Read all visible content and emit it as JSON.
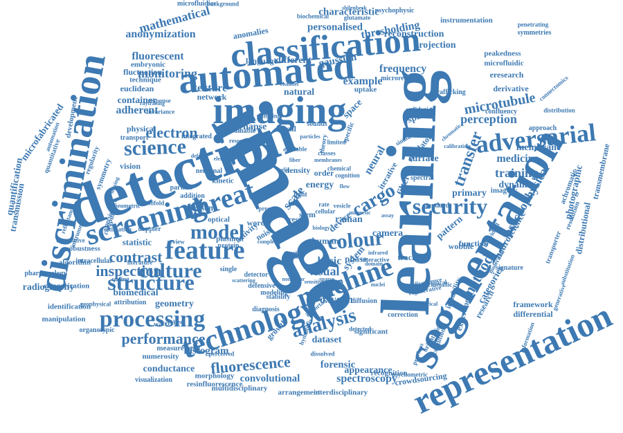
{
  "colors": {
    "primary": "#3d79b2",
    "background": "#ffffff"
  },
  "words": [
    "imaging",
    "learning",
    "detection",
    "image",
    "automated",
    "classification",
    "discrimination",
    "segmentation",
    "representation",
    "screening",
    "threat",
    "technology",
    "machine",
    "adversarial",
    "processing",
    "structure",
    "feature",
    "science",
    "model",
    "security",
    "analysis",
    "culture",
    "colour",
    "fluorescence",
    "performance",
    "microtubule",
    "inspection",
    "contrast",
    "electron",
    "transfer",
    "cargo",
    "medicine",
    "training",
    "perception",
    "psychophysical",
    "method",
    "spectroscopy",
    "characteristic",
    "personalised",
    "thresholding",
    "reconstruction",
    "anonymization",
    "mathematical",
    "monitoring",
    "fluorescent",
    "projection",
    "microfabricated",
    "quantification",
    "transmission",
    "convolutional",
    "histogram",
    "conductance",
    "biomedical",
    "geometry",
    "radiography",
    "membrane",
    "neuroscience",
    "photographic",
    "distributional",
    "transmembrane",
    "categories",
    "research",
    "experiment",
    "framework",
    "differential",
    "microfluidic",
    "peakedness",
    "eresearch",
    "derivative",
    "connectomics",
    "achromatic",
    "crowdsourcing",
    "interdisciplinary",
    "multidisciplinary",
    "arrangement",
    "morphology",
    "visualization",
    "numerosity",
    "measurement",
    "resinfluorescence",
    "manipulation",
    "identification",
    "categorization",
    "pharmacology",
    "algorithm",
    "statistic",
    "robustness",
    "adherent",
    "container",
    "network",
    "texture",
    "natural",
    "example",
    "frequency",
    "gaussian",
    "different",
    "language",
    "anomalies",
    "technique",
    "fluctuation",
    "euclidean",
    "embryonic",
    "physical",
    "transport",
    "regularity",
    "symmetry",
    "vision",
    "development",
    "quantitative",
    "microfluidics",
    "background",
    "instrumentation",
    "psychophysic",
    "glutamate",
    "biochemical",
    "shilenbeck",
    "symmetries",
    "penetrating",
    "spatial",
    "space",
    "neural",
    "surface",
    "system",
    "primary",
    "pattern",
    "function",
    "dynamic",
    "imagery",
    "visual",
    "basic",
    "oxygen",
    "dataset",
    "phase",
    "tracking",
    "human",
    "camera",
    "device",
    "result",
    "stem",
    "present",
    "optical",
    "plasmon",
    "protein",
    "synapse",
    "local",
    "forensic",
    "appearance",
    "recognition",
    "orientation",
    "instability",
    "conditional",
    "wobble",
    "filter",
    "energy",
    "uptake",
    "validation",
    "confluency",
    "distribution",
    "approach",
    "resolution",
    "transporter",
    "substitution",
    "information",
    "generative",
    "significant",
    "correction",
    "growth",
    "diffusion",
    "detector",
    "defensive",
    "diagnosis",
    "attribution",
    "watershed",
    "geophysical",
    "organotypic",
    "doppler",
    "intracellular",
    "microreactors",
    "trafficking",
    "spectral",
    "standard",
    "signature",
    "modeling",
    "stability",
    "kinetic",
    "neuronal",
    "particle",
    "activity",
    "noise",
    "word",
    "cell",
    "scale",
    "raman",
    "order",
    "density",
    "trainable",
    "integrated",
    "invariance",
    "response",
    "persistence",
    "computer",
    "instrument",
    "correlative",
    "reflectance",
    "automation",
    "estimation",
    "specific",
    "iterative",
    "regulator",
    "regenerative",
    "psychometric",
    "dissolved",
    "literature",
    "review",
    "complex",
    "single",
    "cross",
    "proc",
    "light",
    "rate",
    "cellular",
    "addition",
    "manifold",
    "geometric",
    "coding",
    "theory",
    "sounds",
    "limited",
    "chemical",
    "cognition",
    "individual",
    "molecular",
    "hydrolysis",
    "previous",
    "divergence",
    "clinical",
    "metallic",
    "section",
    "resonance",
    "pumping",
    "channel",
    "available",
    "similar",
    "spectra",
    "physic",
    "fashion",
    "interactive",
    "sensing",
    "classes",
    "biology",
    "particles",
    "membranes",
    "vesicle",
    "fiber",
    "element",
    "defect",
    "simple",
    "body",
    "glia",
    "raytracing",
    "sensitive",
    "perceived",
    "calibration",
    "scattering",
    "infrared",
    "nonlinear",
    "detected",
    "important",
    "sparse",
    "empirical",
    "magnetic",
    "chromatic",
    "assay",
    "nuclei",
    "flow",
    "domain",
    "edge"
  ]
}
